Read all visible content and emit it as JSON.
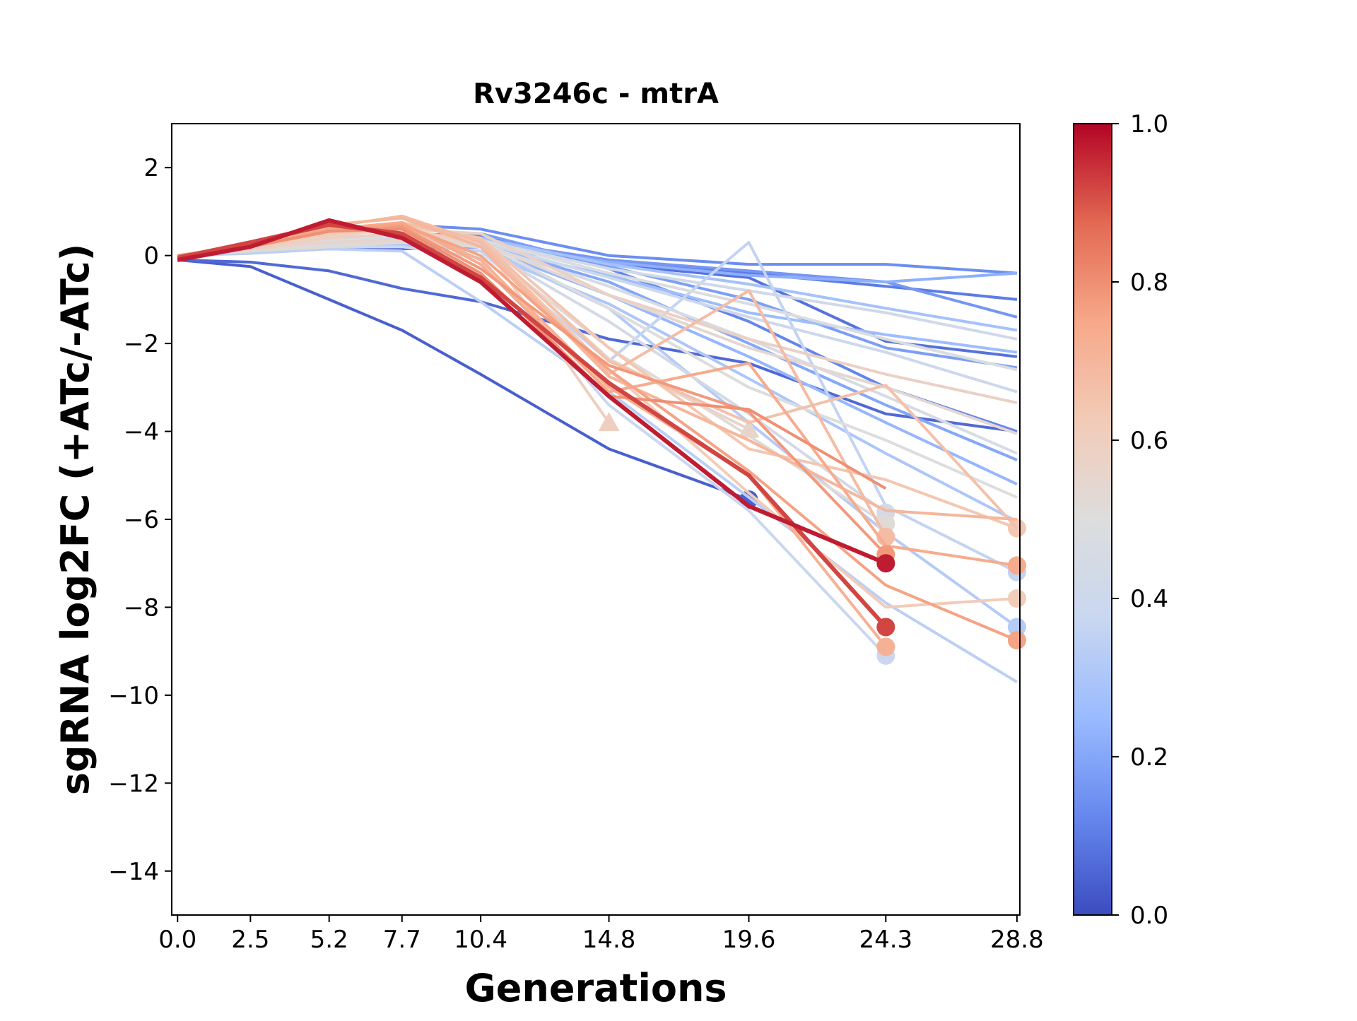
{
  "chart_data": {
    "type": "line",
    "title": "Rv3246c - mtrA",
    "xlabel": "Generations",
    "ylabel": "sgRNA log2FC (+ATc/-ATc)",
    "x_ticks": [
      0.0,
      2.5,
      5.2,
      7.7,
      10.4,
      14.8,
      19.6,
      24.3,
      28.8
    ],
    "x_tick_labels": [
      "0.0",
      "2.5",
      "5.2",
      "7.7",
      "10.4",
      "14.8",
      "19.6",
      "24.3",
      "28.8"
    ],
    "xlim": [
      -0.2,
      28.9
    ],
    "y_ticks": [
      2,
      0,
      -2,
      -4,
      -6,
      -8,
      -10,
      -12,
      -14
    ],
    "y_tick_labels": [
      "2",
      "0",
      "−2",
      "−4",
      "−6",
      "−8",
      "−10",
      "−12",
      "−14"
    ],
    "ylim": [
      -15,
      3
    ],
    "grid": false,
    "colorbar": {
      "colormap": "coolwarm",
      "range": [
        0.0,
        1.0
      ],
      "ticks": [
        0.0,
        0.2,
        0.4,
        0.6,
        0.8,
        1.0
      ],
      "tick_labels": [
        "0.0",
        "0.2",
        "0.4",
        "0.6",
        "0.8",
        "1.0"
      ],
      "colors": [
        "#3b4cc0",
        "#6688ee",
        "#9abbff",
        "#c9d7f0",
        "#dddddd",
        "#f2cbb7",
        "#f7a889",
        "#e26952",
        "#b40426"
      ]
    },
    "series": [
      {
        "c": 0.04,
        "values": [
          -0.1,
          -0.25,
          -1.0,
          -1.7,
          -2.7,
          -4.4,
          -5.55
        ],
        "marker": "circle"
      },
      {
        "c": 0.06,
        "values": [
          -0.1,
          -0.15,
          -0.35,
          -0.75,
          -1.05,
          -1.9,
          -2.45,
          -3.6,
          -4.0
        ]
      },
      {
        "c": 0.08,
        "values": [
          -0.05,
          0.1,
          0.15,
          0.15,
          0.2,
          -0.2,
          -0.5,
          -1.95,
          -2.3
        ]
      },
      {
        "c": 0.1,
        "values": [
          -0.05,
          0.1,
          0.2,
          0.25,
          0.3,
          -0.15,
          -0.4,
          -0.7,
          -1.0
        ]
      },
      {
        "c": 0.12,
        "values": [
          0.0,
          0.2,
          0.35,
          0.5,
          0.45,
          -0.3,
          -1.5,
          -3.0,
          -4.0
        ]
      },
      {
        "c": 0.14,
        "values": [
          0.0,
          0.15,
          0.45,
          0.7,
          0.6,
          0.0,
          -0.2,
          -0.2,
          -0.4
        ]
      },
      {
        "c": 0.16,
        "values": [
          0.0,
          0.15,
          0.3,
          0.4,
          0.35,
          -0.1,
          -0.35,
          -0.6,
          -1.4
        ]
      },
      {
        "c": 0.18,
        "values": [
          0.0,
          0.2,
          0.35,
          0.45,
          0.5,
          -0.25,
          -1.0,
          -2.1,
          -2.55
        ]
      },
      {
        "c": 0.2,
        "values": [
          0.0,
          0.1,
          0.25,
          0.3,
          0.25,
          -0.6,
          -2.0,
          -3.4,
          -4.65
        ]
      },
      {
        "c": 0.22,
        "values": [
          0.0,
          0.15,
          0.3,
          0.35,
          0.3,
          -0.15,
          -0.45,
          -0.6,
          -0.4
        ]
      },
      {
        "c": 0.24,
        "values": [
          0.0,
          0.1,
          0.2,
          0.3,
          0.2,
          -0.9,
          -2.3,
          -3.8,
          -5.2
        ]
      },
      {
        "c": 0.26,
        "values": [
          0.0,
          0.1,
          0.25,
          0.25,
          0.2,
          -0.45,
          -1.3,
          -1.8,
          -2.2
        ]
      },
      {
        "c": 0.28,
        "values": [
          0.0,
          0.2,
          0.4,
          0.5,
          0.4,
          -0.2,
          -0.65,
          -1.2,
          -1.7
        ]
      },
      {
        "c": 0.3,
        "values": [
          0.0,
          0.1,
          0.3,
          0.25,
          0.1,
          -1.1,
          -2.8,
          -4.5,
          -6.05
        ]
      },
      {
        "c": 0.32,
        "values": [
          0.0,
          0.1,
          0.2,
          0.3,
          0.2,
          -1.2,
          -3.8,
          -6.3,
          -8.45
        ],
        "marker": "circle"
      },
      {
        "c": 0.34,
        "values": [
          0.0,
          0.05,
          0.15,
          0.1,
          -1.05,
          -3.1,
          -5.5,
          -7.9,
          -9.7
        ]
      },
      {
        "c": 0.36,
        "values": [
          0.0,
          0.1,
          0.3,
          0.3,
          0.1,
          -2.4,
          0.3,
          -5.7,
          -7.2
        ],
        "marker": "circle"
      },
      {
        "c": 0.38,
        "values": [
          0.0,
          0.1,
          0.2,
          0.2,
          -0.05,
          -3.4,
          -5.8,
          -9.1
        ],
        "marker": "circle"
      },
      {
        "c": 0.4,
        "values": [
          0.0,
          0.15,
          0.3,
          0.35,
          0.3,
          -0.5,
          -1.4,
          -2.2,
          -3.1
        ]
      },
      {
        "c": 0.42,
        "values": [
          0.0,
          0.15,
          0.3,
          0.4,
          0.35,
          -0.3,
          -0.8,
          -1.3,
          -1.9
        ]
      },
      {
        "c": 0.44,
        "values": [
          0.0,
          0.1,
          0.3,
          0.35,
          0.2,
          -1.5,
          -3.6,
          -5.85
        ],
        "marker": "circle"
      },
      {
        "c": 0.46,
        "values": [
          0.0,
          0.1,
          0.25,
          0.3,
          0.25,
          -0.7,
          -1.9,
          -3.2,
          -4.5
        ]
      },
      {
        "c": 0.48,
        "values": [
          0.0,
          0.15,
          0.35,
          0.45,
          0.35,
          -0.4,
          -1.1,
          -1.9,
          -2.6
        ]
      },
      {
        "c": 0.5,
        "values": [
          0.0,
          0.1,
          0.3,
          0.35,
          0.3,
          -1.2,
          -3.0,
          -4.2,
          -5.5
        ]
      },
      {
        "c": 0.52,
        "values": [
          0.0,
          0.1,
          0.2,
          0.3,
          0.2,
          -2.1,
          -4.1,
          -6.1
        ],
        "marker": "circle"
      },
      {
        "c": 0.54,
        "values": [
          0.0,
          0.15,
          0.3,
          0.35,
          0.3,
          -0.9,
          -2.1,
          -3.0,
          -4.05
        ]
      },
      {
        "c": 0.56,
        "values": [
          0.0,
          0.15,
          0.3,
          0.35,
          0.3,
          -2.35,
          -3.95
        ],
        "marker": "triangle"
      },
      {
        "c": 0.58,
        "values": [
          0.0,
          0.2,
          0.45,
          0.6,
          0.5,
          -0.9,
          -1.9,
          -2.7,
          -3.35
        ]
      },
      {
        "c": 0.6,
        "values": [
          0.0,
          0.15,
          0.4,
          0.5,
          0.35,
          -3.8
        ],
        "marker": "triangle"
      },
      {
        "c": 0.62,
        "values": [
          0.0,
          0.2,
          0.5,
          0.6,
          0.3,
          -2.6,
          -5.4,
          -8.0,
          -7.8
        ],
        "marker": "circle"
      },
      {
        "c": 0.64,
        "values": [
          0.0,
          0.2,
          0.55,
          0.7,
          0.4,
          -2.1,
          -4.4,
          -5.1,
          -6.2
        ],
        "marker": "circle"
      },
      {
        "c": 0.66,
        "values": [
          0.0,
          0.25,
          0.6,
          0.75,
          0.35,
          -2.4,
          -3.8,
          -2.95,
          -6.2
        ]
      },
      {
        "c": 0.68,
        "values": [
          0.0,
          0.25,
          0.65,
          0.9,
          0.3,
          -2.7,
          -0.8,
          -6.4
        ],
        "marker": "circle"
      },
      {
        "c": 0.7,
        "values": [
          0.0,
          0.25,
          0.7,
          0.85,
          0.2,
          -2.75,
          -4.2,
          -5.8,
          -6.0
        ]
      },
      {
        "c": 0.72,
        "values": [
          0.0,
          0.2,
          0.6,
          0.7,
          -0.1,
          -3.0,
          -5.0,
          -8.9
        ],
        "marker": "circle"
      },
      {
        "c": 0.74,
        "values": [
          0.0,
          0.2,
          0.6,
          0.75,
          -0.2,
          -3.1,
          -2.45,
          -6.6,
          -7.05
        ],
        "marker": "circle"
      },
      {
        "c": 0.76,
        "values": [
          0.0,
          0.2,
          0.6,
          0.7,
          0.0,
          -2.6,
          -4.9,
          -7.5,
          -8.75
        ],
        "marker": "circle"
      },
      {
        "c": 0.78,
        "values": [
          0.0,
          0.2,
          0.55,
          0.65,
          -0.3,
          -2.5,
          -3.55,
          -6.8
        ],
        "marker": "circle"
      },
      {
        "c": 0.8,
        "values": [
          0.0,
          0.2,
          0.55,
          0.6,
          -0.4,
          -3.2,
          -3.5,
          -5.3
        ]
      },
      {
        "c": 0.92,
        "values": [
          -0.05,
          0.3,
          0.7,
          0.5,
          -0.5,
          -2.9,
          -5.0,
          -8.45
        ],
        "marker": "circle"
      },
      {
        "c": 0.97,
        "values": [
          -0.1,
          0.2,
          0.8,
          0.4,
          -0.6,
          -3.2,
          -5.7,
          -7.0
        ],
        "marker": "circle"
      }
    ]
  }
}
